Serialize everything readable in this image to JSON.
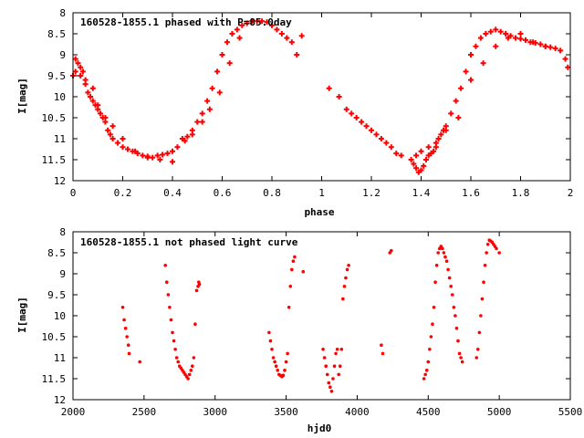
{
  "colors": {
    "points": "#ff0000",
    "axes": "#000000",
    "background": "#ffffff"
  },
  "chart_data": [
    {
      "type": "scatter",
      "title": "160528-1855.1 phased with P=85.0day",
      "xlabel": "phase",
      "ylabel": "I[mag]",
      "xlim": [
        0,
        2
      ],
      "ylim": [
        8,
        12
      ],
      "y_inverted": true,
      "grid": false,
      "x_ticks": [
        "0",
        "0.2",
        "0.4",
        "0.6",
        "0.8",
        "1",
        "1.2",
        "1.4",
        "1.6",
        "1.8",
        "2"
      ],
      "y_ticks": [
        "8",
        "8.5",
        "9",
        "9.5",
        "10",
        "10.5",
        "11",
        "11.5",
        "12"
      ],
      "series": [
        {
          "marker": "plus",
          "x": [
            0.0,
            0.01,
            0.02,
            0.03,
            0.04,
            0.05,
            0.06,
            0.07,
            0.08,
            0.09,
            0.1,
            0.11,
            0.12,
            0.13,
            0.14,
            0.15,
            0.16,
            0.18,
            0.2,
            0.22,
            0.24,
            0.26,
            0.28,
            0.3,
            0.32,
            0.34,
            0.36,
            0.38,
            0.4,
            0.42,
            0.44,
            0.46,
            0.48,
            0.5,
            0.52,
            0.54,
            0.56,
            0.58,
            0.6,
            0.62,
            0.64,
            0.66,
            0.68,
            0.7,
            0.72,
            0.74,
            0.76,
            0.78,
            0.8,
            0.82,
            0.84,
            0.86,
            0.88,
            0.9,
            0.92,
            0.01,
            0.03,
            0.05,
            0.08,
            0.1,
            0.13,
            0.16,
            0.2,
            0.25,
            0.3,
            0.35,
            0.4,
            0.45,
            0.48,
            0.52,
            0.55,
            0.59,
            0.63,
            0.67,
            1.03,
            1.07,
            1.1,
            1.12,
            1.14,
            1.16,
            1.18,
            1.2,
            1.22,
            1.24,
            1.26,
            1.28,
            1.3,
            1.32,
            1.36,
            1.37,
            1.38,
            1.39,
            1.4,
            1.41,
            1.42,
            1.43,
            1.44,
            1.45,
            1.46,
            1.47,
            1.48,
            1.49,
            1.5,
            1.52,
            1.54,
            1.56,
            1.58,
            1.6,
            1.62,
            1.64,
            1.66,
            1.68,
            1.7,
            1.72,
            1.74,
            1.76,
            1.78,
            1.8,
            1.82,
            1.84,
            1.86,
            1.88,
            1.9,
            1.92,
            1.94,
            1.96,
            1.98,
            1.99,
            1.38,
            1.4,
            1.43,
            1.46,
            1.5,
            1.55,
            1.6,
            1.65,
            1.7,
            1.75,
            1.8,
            1.85,
            1.9
          ],
          "y": [
            9.5,
            9.1,
            9.2,
            9.3,
            9.4,
            9.7,
            9.9,
            10.0,
            10.1,
            10.2,
            10.3,
            10.4,
            10.5,
            10.6,
            10.8,
            10.9,
            11.0,
            11.1,
            11.2,
            11.25,
            11.3,
            11.35,
            11.4,
            11.42,
            11.45,
            11.4,
            11.38,
            11.35,
            11.3,
            11.2,
            11.0,
            10.95,
            10.8,
            10.6,
            10.4,
            10.1,
            9.8,
            9.4,
            9.0,
            8.7,
            8.5,
            8.4,
            8.3,
            8.25,
            8.2,
            8.2,
            8.2,
            8.22,
            8.3,
            8.4,
            8.5,
            8.6,
            8.7,
            9.0,
            8.55,
            9.4,
            9.5,
            9.6,
            9.8,
            10.2,
            10.5,
            10.7,
            11.0,
            11.3,
            11.45,
            11.5,
            11.55,
            11.05,
            10.9,
            10.6,
            10.3,
            9.9,
            9.2,
            8.6,
            9.8,
            10.0,
            10.3,
            10.4,
            10.5,
            10.6,
            10.7,
            10.8,
            10.9,
            11.0,
            11.1,
            11.2,
            11.35,
            11.4,
            11.5,
            11.6,
            11.7,
            11.8,
            11.75,
            11.65,
            11.5,
            11.4,
            11.35,
            11.3,
            11.2,
            11.0,
            10.9,
            10.8,
            10.7,
            10.4,
            10.1,
            9.8,
            9.4,
            9.0,
            8.8,
            8.6,
            8.5,
            8.45,
            8.4,
            8.45,
            8.5,
            8.55,
            8.6,
            8.62,
            8.65,
            8.7,
            8.72,
            8.75,
            8.8,
            8.82,
            8.85,
            8.9,
            9.1,
            9.3,
            11.4,
            11.3,
            11.2,
            11.1,
            10.8,
            10.5,
            9.6,
            9.2,
            8.8,
            8.6,
            8.5,
            8.7,
            8.8
          ]
        }
      ]
    },
    {
      "type": "scatter",
      "title": "160528-1855.1 not phased light curve",
      "xlabel": "hjd0",
      "ylabel": "I[mag]",
      "xlim": [
        2000,
        5500
      ],
      "ylim": [
        8,
        12
      ],
      "y_inverted": true,
      "grid": false,
      "x_ticks": [
        "2000",
        "2500",
        "3000",
        "3500",
        "4000",
        "4500",
        "5000",
        "5500"
      ],
      "y_ticks": [
        "8",
        "8.5",
        "9",
        "9.5",
        "10",
        "10.5",
        "11",
        "11.5",
        "12"
      ],
      "series": [
        {
          "marker": "dot",
          "x": [
            2350,
            2360,
            2370,
            2380,
            2390,
            2395,
            2470,
            2650,
            2660,
            2670,
            2680,
            2690,
            2700,
            2710,
            2720,
            2730,
            2740,
            2750,
            2760,
            2770,
            2780,
            2790,
            2800,
            2810,
            2820,
            2830,
            2840,
            2850,
            2860,
            2870,
            2880,
            2885,
            2890,
            3380,
            3390,
            3400,
            3410,
            3420,
            3430,
            3440,
            3450,
            3460,
            3470,
            3480,
            3490,
            3500,
            3510,
            3520,
            3530,
            3540,
            3550,
            3560,
            3620,
            3760,
            3770,
            3780,
            3790,
            3800,
            3810,
            3820,
            3830,
            3840,
            3850,
            3860,
            3870,
            3880,
            3890,
            3900,
            3910,
            3920,
            3930,
            3940,
            4170,
            4180,
            4230,
            4240,
            4470,
            4480,
            4490,
            4500,
            4510,
            4520,
            4530,
            4540,
            4550,
            4560,
            4570,
            4580,
            4590,
            4600,
            4610,
            4620,
            4630,
            4640,
            4650,
            4660,
            4670,
            4680,
            4690,
            4700,
            4710,
            4720,
            4730,
            4740,
            4840,
            4850,
            4860,
            4870,
            4880,
            4890,
            4900,
            4910,
            4920,
            4930,
            4940,
            4950,
            4960,
            4970,
            4980,
            5000
          ],
          "y": [
            9.8,
            10.1,
            10.3,
            10.5,
            10.7,
            10.9,
            11.1,
            8.8,
            9.2,
            9.5,
            9.8,
            10.1,
            10.4,
            10.6,
            10.8,
            11.0,
            11.1,
            11.2,
            11.25,
            11.3,
            11.35,
            11.4,
            11.45,
            11.5,
            11.4,
            11.3,
            11.2,
            11.0,
            10.2,
            9.4,
            9.3,
            9.2,
            9.25,
            10.4,
            10.6,
            10.8,
            11.0,
            11.1,
            11.2,
            11.3,
            11.4,
            11.42,
            11.45,
            11.42,
            11.3,
            11.1,
            10.9,
            9.8,
            9.3,
            8.9,
            8.7,
            8.6,
            8.95,
            10.8,
            11.0,
            11.2,
            11.4,
            11.6,
            11.7,
            11.8,
            11.5,
            11.2,
            10.9,
            10.8,
            11.4,
            11.2,
            10.8,
            9.6,
            9.3,
            9.1,
            8.9,
            8.8,
            10.7,
            10.9,
            8.5,
            8.45,
            11.5,
            11.4,
            11.3,
            11.1,
            10.8,
            10.5,
            10.2,
            9.8,
            9.2,
            8.8,
            8.5,
            8.4,
            8.35,
            8.4,
            8.5,
            8.6,
            8.7,
            8.9,
            9.1,
            9.3,
            9.5,
            9.8,
            10.0,
            10.3,
            10.6,
            10.9,
            11.0,
            11.1,
            11.0,
            10.8,
            10.4,
            10.0,
            9.6,
            9.2,
            8.8,
            8.5,
            8.3,
            8.2,
            8.22,
            8.25,
            8.3,
            8.35,
            8.4,
            8.5
          ]
        }
      ]
    }
  ]
}
